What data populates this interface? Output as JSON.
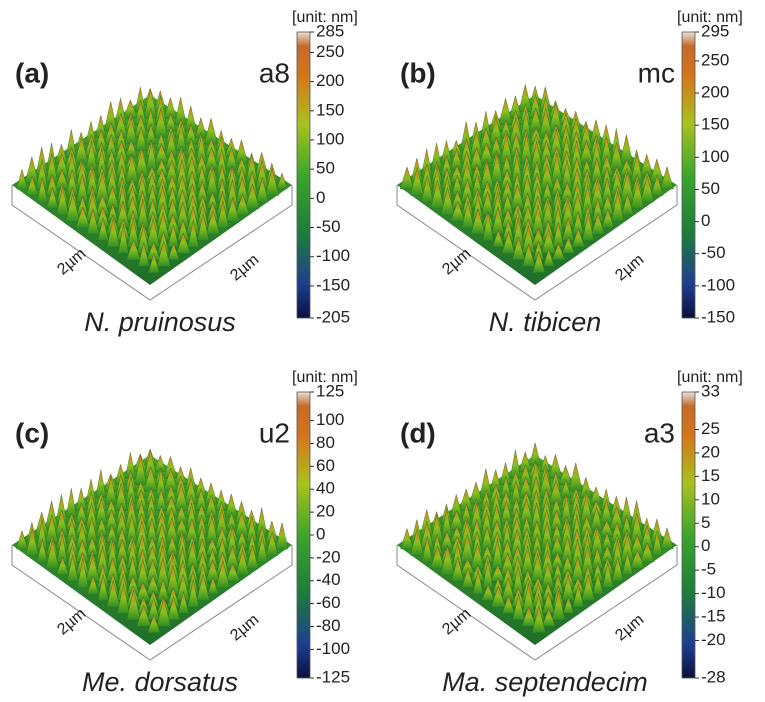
{
  "panels": [
    {
      "label": "(a)",
      "code": "a8",
      "unit": "[unit: nm]",
      "species": "N. pruinosus",
      "axis_labels": [
        "2µm",
        "2µm"
      ],
      "colorbar": [
        285,
        250,
        200,
        150,
        100,
        50,
        0,
        -50,
        -100,
        -150,
        -205
      ]
    },
    {
      "label": "(b)",
      "code": "mc",
      "unit": "[unit: nm]",
      "species": "N. tibicen",
      "axis_labels": [
        "2µm",
        "2µm"
      ],
      "colorbar": [
        295,
        250,
        200,
        150,
        100,
        50,
        0,
        -50,
        -100,
        -150
      ]
    },
    {
      "label": "(c)",
      "code": "u2",
      "unit": "[unit: nm]",
      "species": "Me. dorsatus",
      "axis_labels": [
        "2µm",
        "2µm"
      ],
      "colorbar": [
        125,
        100,
        80,
        60,
        40,
        20,
        0,
        -20,
        -40,
        -60,
        -80,
        -100,
        -125
      ]
    },
    {
      "label": "(d)",
      "code": "a3",
      "unit": "[unit: nm]",
      "species": "Ma. septendecim",
      "axis_labels": [
        "2µm",
        "2µm"
      ],
      "colorbar": [
        33,
        25,
        20,
        15,
        10,
        5,
        0,
        -5,
        -10,
        -15,
        -20,
        -28
      ]
    }
  ]
}
